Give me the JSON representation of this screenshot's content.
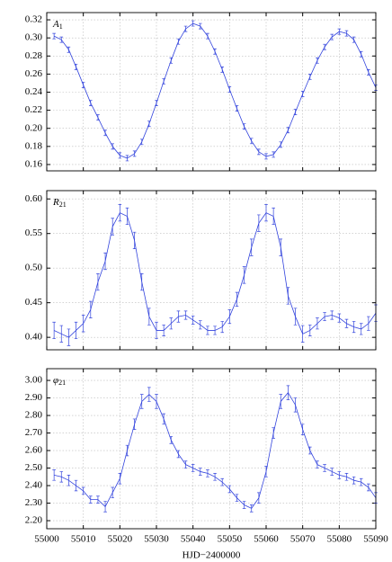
{
  "chart_data": [
    {
      "type": "line",
      "panel_label": "A",
      "panel_label_sub": "1",
      "color": "#3344dd",
      "grid": true,
      "xlim": [
        55000,
        55090
      ],
      "xticks": [
        55000,
        55010,
        55020,
        55030,
        55040,
        55050,
        55060,
        55070,
        55080,
        55090
      ],
      "ylim": [
        0.153,
        0.328
      ],
      "yticks": [
        {
          "value": 0.16,
          "label": "0.16"
        },
        {
          "value": 0.18,
          "label": "0.18"
        },
        {
          "value": 0.2,
          "label": "0.20"
        },
        {
          "value": 0.22,
          "label": "0.22"
        },
        {
          "value": 0.24,
          "label": "0.24"
        },
        {
          "value": 0.26,
          "label": "0.26"
        },
        {
          "value": 0.28,
          "label": "0.28"
        },
        {
          "value": 0.3,
          "label": "0.30"
        },
        {
          "value": 0.32,
          "label": "0.32"
        }
      ],
      "x": [
        55002,
        55004,
        55006,
        55008,
        55010,
        55012,
        55014,
        55016,
        55018,
        55020,
        55022,
        55024,
        55026,
        55028,
        55030,
        55032,
        55034,
        55036,
        55038,
        55040,
        55042,
        55044,
        55046,
        55048,
        55050,
        55052,
        55054,
        55056,
        55058,
        55060,
        55062,
        55064,
        55066,
        55068,
        55070,
        55072,
        55074,
        55076,
        55078,
        55080,
        55082,
        55084,
        55086,
        55088,
        55090
      ],
      "values": [
        0.302,
        0.298,
        0.287,
        0.268,
        0.248,
        0.228,
        0.212,
        0.195,
        0.18,
        0.17,
        0.167,
        0.172,
        0.185,
        0.205,
        0.228,
        0.252,
        0.275,
        0.296,
        0.31,
        0.316,
        0.313,
        0.302,
        0.285,
        0.265,
        0.243,
        0.222,
        0.202,
        0.186,
        0.174,
        0.169,
        0.171,
        0.182,
        0.198,
        0.218,
        0.238,
        0.257,
        0.275,
        0.29,
        0.301,
        0.307,
        0.305,
        0.298,
        0.282,
        0.262,
        0.245
      ],
      "errors": [
        0.003,
        0.003,
        0.003,
        0.003,
        0.003,
        0.003,
        0.003,
        0.003,
        0.003,
        0.003,
        0.003,
        0.003,
        0.003,
        0.003,
        0.003,
        0.003,
        0.003,
        0.003,
        0.003,
        0.003,
        0.003,
        0.003,
        0.003,
        0.003,
        0.003,
        0.003,
        0.003,
        0.003,
        0.003,
        0.003,
        0.003,
        0.003,
        0.003,
        0.003,
        0.003,
        0.003,
        0.003,
        0.003,
        0.003,
        0.003,
        0.003,
        0.003,
        0.003,
        0.003,
        0.003
      ]
    },
    {
      "type": "line",
      "panel_label": "R",
      "panel_label_sub": "21",
      "color": "#3344dd",
      "grid": true,
      "xlim": [
        55000,
        55090
      ],
      "xticks": [
        55000,
        55010,
        55020,
        55030,
        55040,
        55050,
        55060,
        55070,
        55080,
        55090
      ],
      "ylim": [
        0.382,
        0.612
      ],
      "yticks": [
        {
          "value": 0.4,
          "label": "0.40"
        },
        {
          "value": 0.45,
          "label": "0.45"
        },
        {
          "value": 0.5,
          "label": "0.50"
        },
        {
          "value": 0.55,
          "label": "0.55"
        },
        {
          "value": 0.6,
          "label": "0.60"
        }
      ],
      "x": [
        55002,
        55004,
        55006,
        55008,
        55010,
        55012,
        55014,
        55016,
        55018,
        55020,
        55022,
        55024,
        55026,
        55028,
        55030,
        55032,
        55034,
        55036,
        55038,
        55040,
        55042,
        55044,
        55046,
        55048,
        55050,
        55052,
        55054,
        55056,
        55058,
        55060,
        55062,
        55064,
        55066,
        55068,
        55070,
        55072,
        55074,
        55076,
        55078,
        55080,
        55082,
        55084,
        55086,
        55088,
        55090
      ],
      "values": [
        0.41,
        0.405,
        0.4,
        0.41,
        0.42,
        0.44,
        0.48,
        0.51,
        0.56,
        0.58,
        0.575,
        0.54,
        0.48,
        0.43,
        0.41,
        0.41,
        0.42,
        0.43,
        0.432,
        0.425,
        0.418,
        0.41,
        0.41,
        0.415,
        0.43,
        0.455,
        0.49,
        0.53,
        0.565,
        0.58,
        0.575,
        0.53,
        0.46,
        0.43,
        0.405,
        0.41,
        0.42,
        0.43,
        0.432,
        0.428,
        0.42,
        0.415,
        0.412,
        0.42,
        0.435
      ],
      "errors": [
        0.012,
        0.012,
        0.012,
        0.012,
        0.012,
        0.012,
        0.012,
        0.012,
        0.012,
        0.012,
        0.012,
        0.012,
        0.012,
        0.012,
        0.012,
        0.008,
        0.008,
        0.008,
        0.006,
        0.006,
        0.006,
        0.006,
        0.006,
        0.008,
        0.01,
        0.01,
        0.012,
        0.012,
        0.012,
        0.012,
        0.012,
        0.012,
        0.012,
        0.012,
        0.012,
        0.008,
        0.008,
        0.006,
        0.006,
        0.006,
        0.006,
        0.008,
        0.008,
        0.01,
        0.012
      ]
    },
    {
      "type": "line",
      "panel_label": "φ",
      "panel_label_sub": "21",
      "color": "#3344dd",
      "grid": true,
      "x_label": "HJD−2400000",
      "xlim": [
        55000,
        55090
      ],
      "xticks": [
        55000,
        55010,
        55020,
        55030,
        55040,
        55050,
        55060,
        55070,
        55080,
        55090
      ],
      "ylim": [
        2.154,
        3.067
      ],
      "yticks": [
        {
          "value": 2.2,
          "label": "2.20"
        },
        {
          "value": 2.3,
          "label": "2.30"
        },
        {
          "value": 2.4,
          "label": "2.40"
        },
        {
          "value": 2.5,
          "label": "2.50"
        },
        {
          "value": 2.6,
          "label": "2.60"
        },
        {
          "value": 2.7,
          "label": "2.70"
        },
        {
          "value": 2.8,
          "label": "2.80"
        },
        {
          "value": 2.9,
          "label": "2.90"
        },
        {
          "value": 3.0,
          "label": "3.00"
        }
      ],
      "x": [
        55002,
        55004,
        55006,
        55008,
        55010,
        55012,
        55014,
        55016,
        55018,
        55020,
        55022,
        55024,
        55026,
        55028,
        55030,
        55032,
        55034,
        55036,
        55038,
        55040,
        55042,
        55044,
        55046,
        55048,
        55050,
        55052,
        55054,
        55056,
        55058,
        55060,
        55062,
        55064,
        55066,
        55068,
        55070,
        55072,
        55074,
        55076,
        55078,
        55080,
        55082,
        55084,
        55086,
        55088,
        55090
      ],
      "values": [
        2.46,
        2.45,
        2.43,
        2.4,
        2.37,
        2.32,
        2.32,
        2.28,
        2.36,
        2.44,
        2.6,
        2.75,
        2.88,
        2.92,
        2.88,
        2.78,
        2.66,
        2.58,
        2.52,
        2.5,
        2.48,
        2.47,
        2.45,
        2.42,
        2.38,
        2.33,
        2.29,
        2.27,
        2.33,
        2.48,
        2.7,
        2.88,
        2.93,
        2.86,
        2.72,
        2.6,
        2.52,
        2.5,
        2.48,
        2.46,
        2.45,
        2.43,
        2.42,
        2.39,
        2.33
      ],
      "errors": [
        0.03,
        0.03,
        0.03,
        0.03,
        0.02,
        0.02,
        0.02,
        0.03,
        0.03,
        0.03,
        0.03,
        0.03,
        0.04,
        0.04,
        0.04,
        0.03,
        0.02,
        0.02,
        0.02,
        0.02,
        0.02,
        0.02,
        0.02,
        0.02,
        0.02,
        0.02,
        0.02,
        0.02,
        0.03,
        0.03,
        0.03,
        0.04,
        0.04,
        0.04,
        0.03,
        0.02,
        0.02,
        0.02,
        0.02,
        0.02,
        0.02,
        0.02,
        0.02,
        0.02,
        0.03
      ]
    }
  ]
}
